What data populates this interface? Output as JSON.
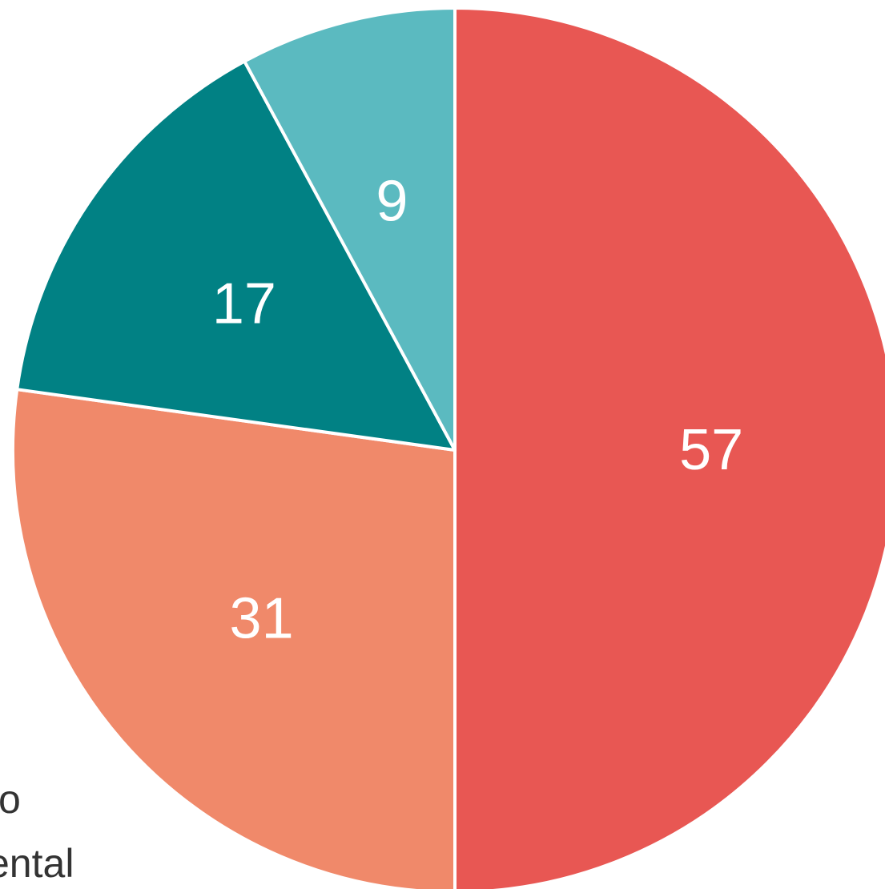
{
  "chart_data": {
    "type": "pie",
    "start": "12 o'clock",
    "direction": "clockwise",
    "slices": [
      {
        "value": 57,
        "label": "57",
        "color": "#e85753"
      },
      {
        "value": 31,
        "label": "31",
        "color": "#f0896a"
      },
      {
        "value": 17,
        "label": "17",
        "color": "#018184"
      },
      {
        "value": 9,
        "label": "9",
        "color": "#5bbac0"
      }
    ],
    "legend": {
      "placement": "bottom-left",
      "visible_entries": [
        "o",
        "ental"
      ]
    }
  }
}
